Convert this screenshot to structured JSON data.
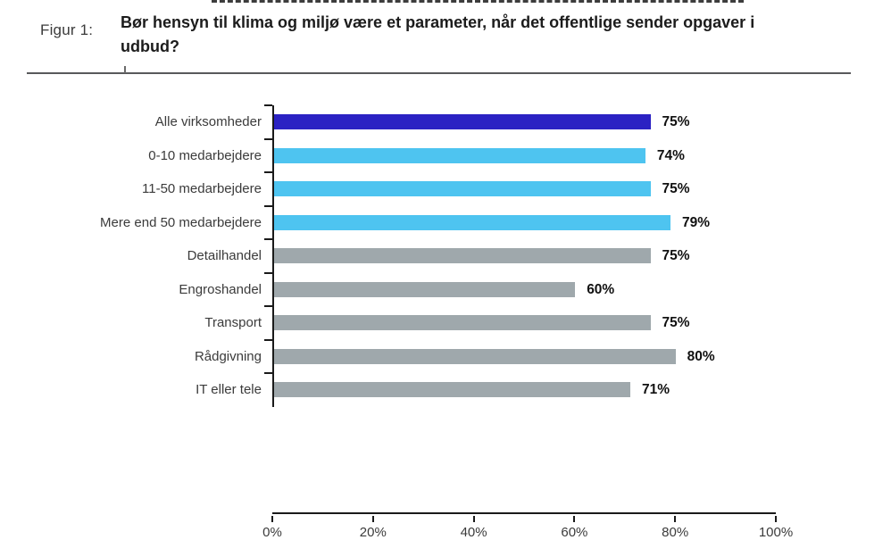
{
  "figure": {
    "label": "Figur 1:",
    "title": "Bør hensyn til klima og miljø være et parameter, når det offentlige sender opgaver i udbud?"
  },
  "chart_data": {
    "type": "bar",
    "orientation": "horizontal",
    "title": "Bør hensyn til klima og miljø være et parameter, når det offentlige sender opgaver i udbud?",
    "categories": [
      "Alle virksomheder",
      "0-10 medarbejdere",
      "11-50 medarbejdere",
      "Mere end 50 medarbejdere",
      "Detailhandel",
      "Engroshandel",
      "Transport",
      "Rådgivning",
      "IT eller tele"
    ],
    "values": [
      75,
      74,
      75,
      79,
      75,
      60,
      75,
      80,
      71
    ],
    "value_labels": [
      "75%",
      "74%",
      "75%",
      "79%",
      "75%",
      "60%",
      "75%",
      "80%",
      "71%"
    ],
    "bar_colors": [
      "#2B22C3",
      "#4EC4F0",
      "#4EC4F0",
      "#4EC4F0",
      "#9FA8AC",
      "#9FA8AC",
      "#9FA8AC",
      "#9FA8AC",
      "#9FA8AC"
    ],
    "color_roles": {
      "all_companies": "#2B22C3",
      "by_company_size": "#4EC4F0",
      "by_industry": "#9FA8AC"
    },
    "xlabel": "",
    "ylabel": "",
    "x_axis": {
      "min": 0,
      "max": 100,
      "ticks": [
        "0%",
        "20%",
        "40%",
        "60%",
        "80%",
        "100%"
      ]
    },
    "grid": false,
    "legend": false,
    "value_labels_position": "end-of-bar"
  }
}
